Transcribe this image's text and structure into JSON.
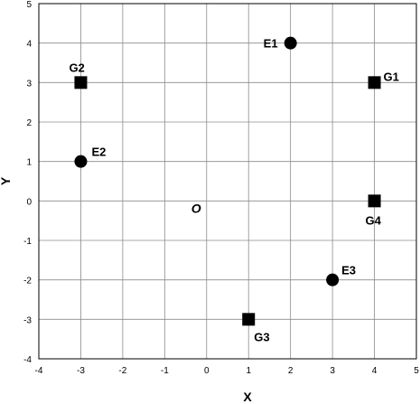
{
  "chart_data": {
    "type": "scatter",
    "xlabel": "X",
    "ylabel": "Y",
    "xlim": [
      -4,
      5
    ],
    "ylim": [
      -4,
      5
    ],
    "xticks": [
      -4,
      -3,
      -2,
      -1,
      0,
      1,
      2,
      3,
      4,
      5
    ],
    "yticks": [
      -4,
      -3,
      -2,
      -1,
      0,
      1,
      2,
      3,
      4,
      5
    ],
    "grid": true,
    "annotations": [
      {
        "text": "O",
        "x": -0.25,
        "y": -0.3
      }
    ],
    "series": [
      {
        "marker": "circle",
        "points": [
          {
            "label": "E1",
            "x": 2,
            "y": 4
          },
          {
            "label": "E2",
            "x": -3,
            "y": 1
          },
          {
            "label": "E3",
            "x": 3,
            "y": -2
          }
        ]
      },
      {
        "marker": "square",
        "points": [
          {
            "label": "G1",
            "x": 4,
            "y": 3
          },
          {
            "label": "G2",
            "x": -3,
            "y": 3
          },
          {
            "label": "G3",
            "x": 1,
            "y": -3
          },
          {
            "label": "G4",
            "x": 4,
            "y": 0
          }
        ]
      }
    ]
  }
}
